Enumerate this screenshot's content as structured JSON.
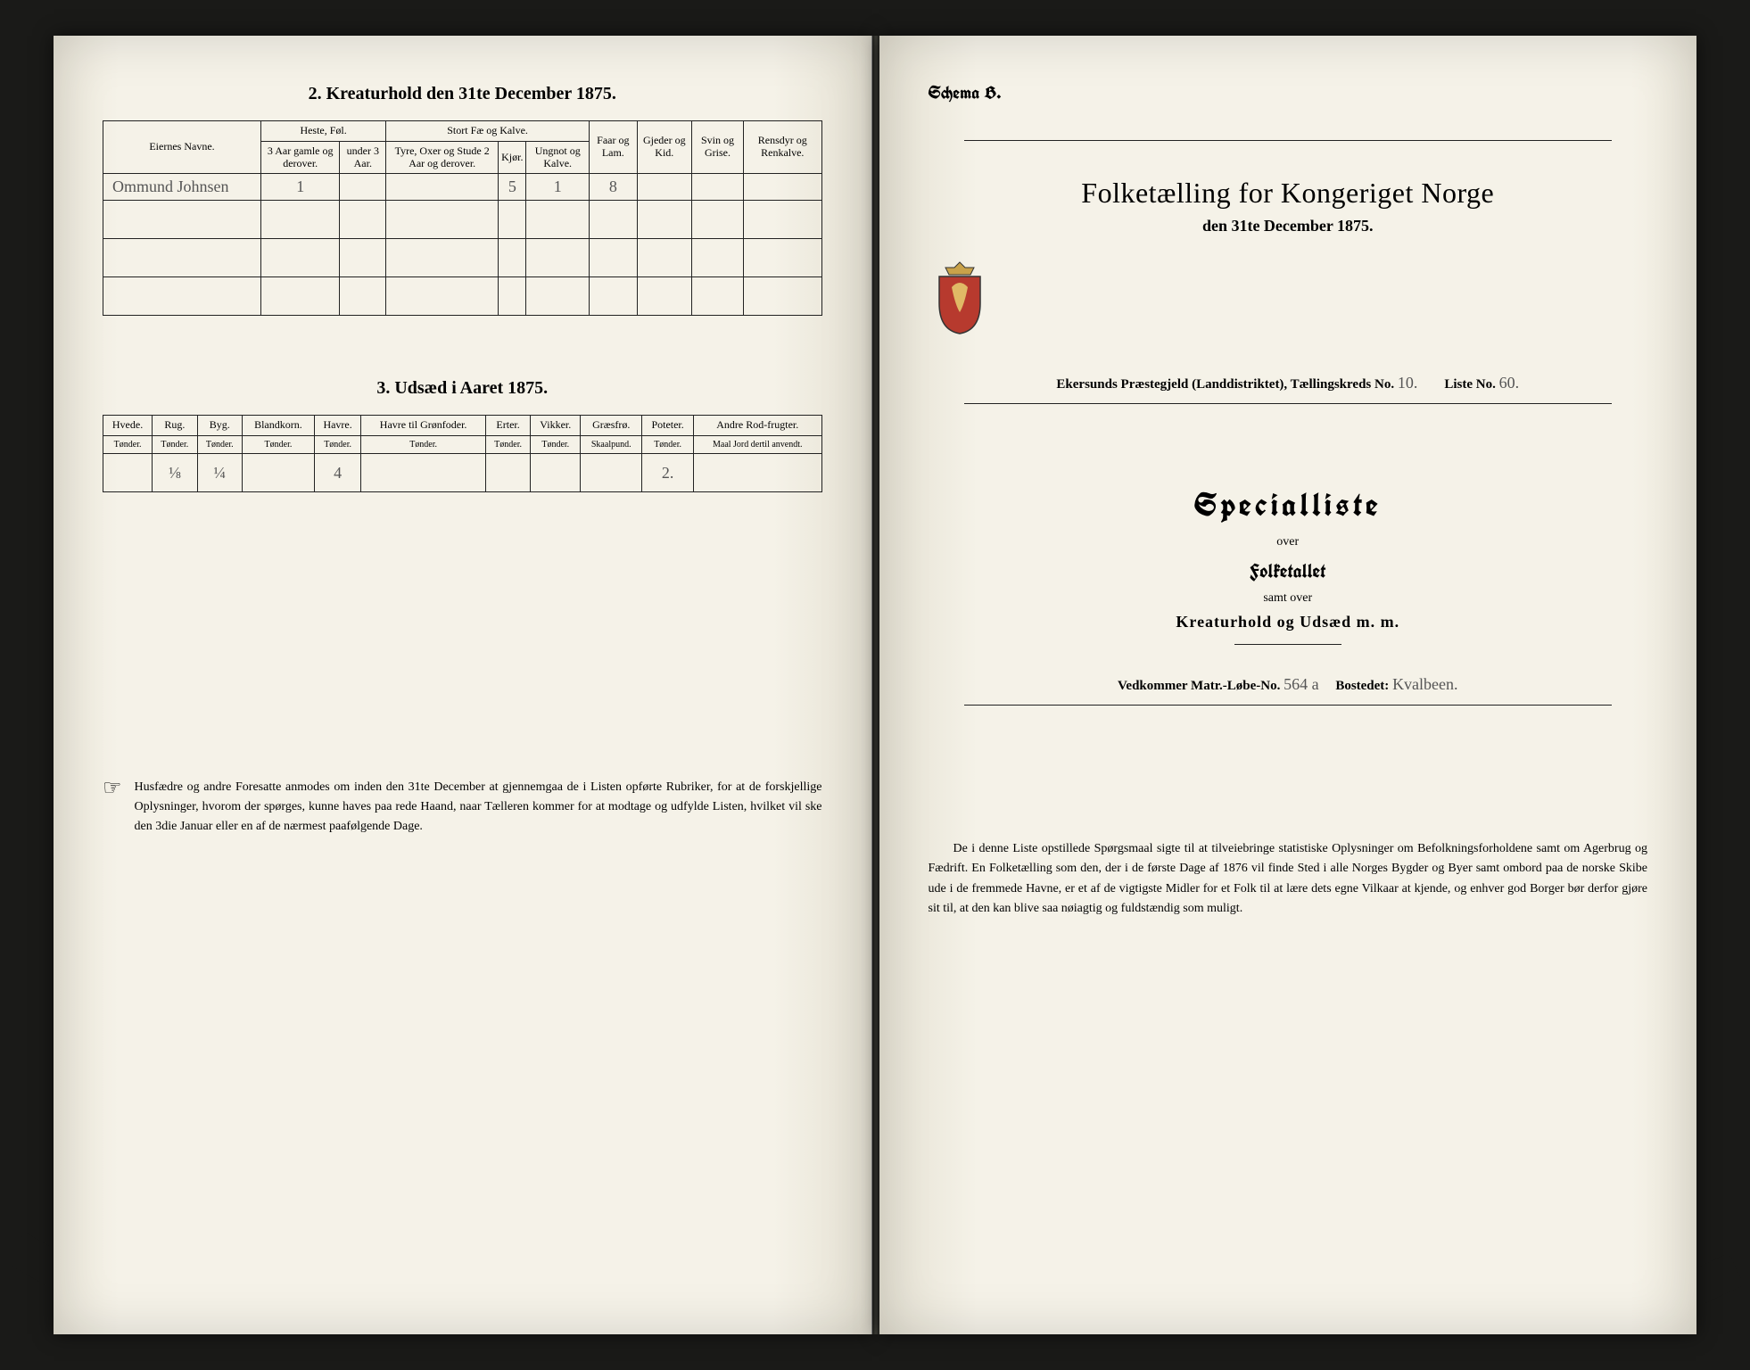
{
  "colors": {
    "paper": "#f5f2e8",
    "ink": "#1a1a1a",
    "handwriting": "#555",
    "background": "#0a0a0a",
    "border": "#222"
  },
  "fonts": {
    "body": "Times New Roman",
    "gothic": "Old English Text MT",
    "script": "Brush Script MT"
  },
  "left": {
    "section2": {
      "title": "2.  Kreaturhold den 31te December 1875.",
      "headers": {
        "eiernes": "Eiernes Navne.",
        "heste": "Heste, Føl.",
        "heste_a": "3 Aar gamle og derover.",
        "heste_b": "under 3 Aar.",
        "stort": "Stort Fæ og Kalve.",
        "stort_a": "Tyre, Oxer og Stude 2 Aar og derover.",
        "stort_b": "Kjør.",
        "stort_c": "Ungnot og Kalve.",
        "faar": "Faar og Lam.",
        "gjeder": "Gjeder og Kid.",
        "svin": "Svin og Grise.",
        "ren": "Rensdyr og Renkalve."
      },
      "row": {
        "name": "Ommund Johnsen",
        "h1": "1",
        "h2": "",
        "s1": "",
        "s2": "5",
        "s3": "1",
        "faar": "8",
        "gjed": "",
        "svin": "",
        "ren": ""
      }
    },
    "section3": {
      "title": "3.  Udsæd i Aaret 1875.",
      "headers": [
        "Hvede.",
        "Rug.",
        "Byg.",
        "Blandkorn.",
        "Havre.",
        "Havre til Grønfoder.",
        "Erter.",
        "Vikker.",
        "Græsfrø.",
        "Poteter.",
        "Andre Rod-frugter."
      ],
      "sub": "Tønder.",
      "sub_skaal": "Skaalpund.",
      "sub_maal": "Maal Jord dertil anvendt.",
      "row": [
        "",
        "⅛",
        "¼",
        "",
        "4",
        "",
        "",
        "",
        "",
        "2.",
        ""
      ]
    },
    "footnote": "Husfædre og andre Foresatte anmodes om inden den 31te December at gjennemgaa de i Listen opførte Rubriker, for at de forskjellige Oplysninger, hvorom der spørges, kunne haves paa rede Haand, naar Tælleren kommer for at modtage og udfylde Listen, hvilket vil ske den 3die Januar eller en af de nærmest paafølgende Dage."
  },
  "right": {
    "schema": "Schema B.",
    "title": "Folketælling for Kongeriget Norge",
    "date": "den 31te December 1875.",
    "crest_colors": {
      "shield": "#b73a2e",
      "crown": "#c9a24a",
      "outline": "#333"
    },
    "parish_line": "Ekersunds Præstegjeld (Landdistriktet),  Tællingskreds No.",
    "kreds_no": "10.",
    "liste_label": "Liste No.",
    "liste_no": "60.",
    "specialliste": "Specialliste",
    "over": "over",
    "folketallet": "Folketallet",
    "samt": "samt over",
    "kreatur": "Kreaturhold og Udsæd m. m.",
    "vedk_label": "Vedkommer Matr.-Løbe-No.",
    "matr_no": "564 a",
    "bostedet_label": "Bostedet:",
    "bostedet": "Kvalbeen.",
    "paragraph": "De i denne Liste opstillede Spørgsmaal sigte til at tilveiebringe statistiske Oplysninger om Befolkningsforholdene samt om Agerbrug og Fædrift.  En Folketælling som den, der i de første Dage af 1876 vil finde Sted i alle Norges Bygder og Byer samt ombord paa de norske Skibe ude i de fremmede Havne, er et af de vigtigste Midler for et Folk til at lære dets egne Vilkaar at kjende, og enhver god Borger bør derfor gjøre sit til, at den kan blive saa nøiagtig og fuldstændig som muligt."
  }
}
